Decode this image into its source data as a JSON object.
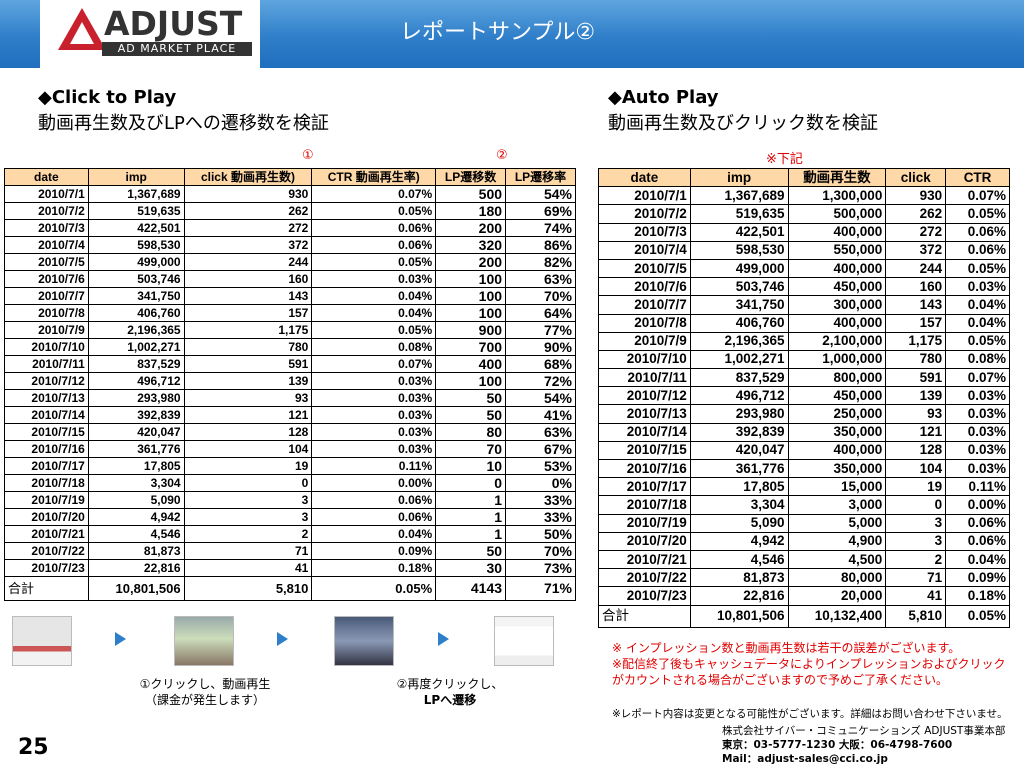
{
  "header": {
    "logo_text": "ADJUST",
    "logo_sub": "AD MARKET PLACE",
    "title": "レポートサンプル②"
  },
  "left": {
    "heading": "◆Click to Play",
    "subheading": "動画再生数及びLPへの遷移数を検証",
    "marker1": "①",
    "marker2": "②",
    "columns": [
      "date",
      "imp",
      "click 動画再生数)",
      "CTR 動画再生率)",
      "LP遷移数",
      "LP遷移率"
    ],
    "rows": [
      [
        "2010/7/1",
        "1,367,689",
        "930",
        "0.07%",
        "500",
        "54%"
      ],
      [
        "2010/7/2",
        "519,635",
        "262",
        "0.05%",
        "180",
        "69%"
      ],
      [
        "2010/7/3",
        "422,501",
        "272",
        "0.06%",
        "200",
        "74%"
      ],
      [
        "2010/7/4",
        "598,530",
        "372",
        "0.06%",
        "320",
        "86%"
      ],
      [
        "2010/7/5",
        "499,000",
        "244",
        "0.05%",
        "200",
        "82%"
      ],
      [
        "2010/7/6",
        "503,746",
        "160",
        "0.03%",
        "100",
        "63%"
      ],
      [
        "2010/7/7",
        "341,750",
        "143",
        "0.04%",
        "100",
        "70%"
      ],
      [
        "2010/7/8",
        "406,760",
        "157",
        "0.04%",
        "100",
        "64%"
      ],
      [
        "2010/7/9",
        "2,196,365",
        "1,175",
        "0.05%",
        "900",
        "77%"
      ],
      [
        "2010/7/10",
        "1,002,271",
        "780",
        "0.08%",
        "700",
        "90%"
      ],
      [
        "2010/7/11",
        "837,529",
        "591",
        "0.07%",
        "400",
        "68%"
      ],
      [
        "2010/7/12",
        "496,712",
        "139",
        "0.03%",
        "100",
        "72%"
      ],
      [
        "2010/7/13",
        "293,980",
        "93",
        "0.03%",
        "50",
        "54%"
      ],
      [
        "2010/7/14",
        "392,839",
        "121",
        "0.03%",
        "50",
        "41%"
      ],
      [
        "2010/7/15",
        "420,047",
        "128",
        "0.03%",
        "80",
        "63%"
      ],
      [
        "2010/7/16",
        "361,776",
        "104",
        "0.03%",
        "70",
        "67%"
      ],
      [
        "2010/7/17",
        "17,805",
        "19",
        "0.11%",
        "10",
        "53%"
      ],
      [
        "2010/7/18",
        "3,304",
        "0",
        "0.00%",
        "0",
        "0%"
      ],
      [
        "2010/7/19",
        "5,090",
        "3",
        "0.06%",
        "1",
        "33%"
      ],
      [
        "2010/7/20",
        "4,942",
        "3",
        "0.06%",
        "1",
        "33%"
      ],
      [
        "2010/7/21",
        "4,546",
        "2",
        "0.04%",
        "1",
        "50%"
      ],
      [
        "2010/7/22",
        "81,873",
        "71",
        "0.09%",
        "50",
        "70%"
      ],
      [
        "2010/7/23",
        "22,816",
        "41",
        "0.18%",
        "30",
        "73%"
      ]
    ],
    "total": [
      "合計",
      "10,801,506",
      "5,810",
      "0.05%",
      "4143",
      "71%"
    ]
  },
  "right": {
    "heading": "◆Auto Play",
    "subheading": "動画再生数及びクリック数を検証",
    "marker": "※下記",
    "columns": [
      "date",
      "imp",
      "動画再生数",
      "click",
      "CTR"
    ],
    "rows": [
      [
        "2010/7/1",
        "1,367,689",
        "1,300,000",
        "930",
        "0.07%"
      ],
      [
        "2010/7/2",
        "519,635",
        "500,000",
        "262",
        "0.05%"
      ],
      [
        "2010/7/3",
        "422,501",
        "400,000",
        "272",
        "0.06%"
      ],
      [
        "2010/7/4",
        "598,530",
        "550,000",
        "372",
        "0.06%"
      ],
      [
        "2010/7/5",
        "499,000",
        "400,000",
        "244",
        "0.05%"
      ],
      [
        "2010/7/6",
        "503,746",
        "450,000",
        "160",
        "0.03%"
      ],
      [
        "2010/7/7",
        "341,750",
        "300,000",
        "143",
        "0.04%"
      ],
      [
        "2010/7/8",
        "406,760",
        "400,000",
        "157",
        "0.04%"
      ],
      [
        "2010/7/9",
        "2,196,365",
        "2,100,000",
        "1,175",
        "0.05%"
      ],
      [
        "2010/7/10",
        "1,002,271",
        "1,000,000",
        "780",
        "0.08%"
      ],
      [
        "2010/7/11",
        "837,529",
        "800,000",
        "591",
        "0.07%"
      ],
      [
        "2010/7/12",
        "496,712",
        "450,000",
        "139",
        "0.03%"
      ],
      [
        "2010/7/13",
        "293,980",
        "250,000",
        "93",
        "0.03%"
      ],
      [
        "2010/7/14",
        "392,839",
        "350,000",
        "121",
        "0.03%"
      ],
      [
        "2010/7/15",
        "420,047",
        "400,000",
        "128",
        "0.03%"
      ],
      [
        "2010/7/16",
        "361,776",
        "350,000",
        "104",
        "0.03%"
      ],
      [
        "2010/7/17",
        "17,805",
        "15,000",
        "19",
        "0.11%"
      ],
      [
        "2010/7/18",
        "3,304",
        "3,000",
        "0",
        "0.00%"
      ],
      [
        "2010/7/19",
        "5,090",
        "5,000",
        "3",
        "0.06%"
      ],
      [
        "2010/7/20",
        "4,942",
        "4,900",
        "3",
        "0.06%"
      ],
      [
        "2010/7/21",
        "4,546",
        "4,500",
        "2",
        "0.04%"
      ],
      [
        "2010/7/22",
        "81,873",
        "80,000",
        "71",
        "0.09%"
      ],
      [
        "2010/7/23",
        "22,816",
        "20,000",
        "41",
        "0.18%"
      ]
    ],
    "total": [
      "合計",
      "10,801,506",
      "10,132,400",
      "5,810",
      "0.05%"
    ]
  },
  "flow": {
    "caption1_line1": "①クリックし、動画再生",
    "caption1_line2": "（課金が発生します）",
    "caption2_line1": "②再度クリックし、",
    "caption2_line2": "LPへ遷移"
  },
  "notes": {
    "red1": "※ インプレッション数と動画再生数は若干の誤差がございます。",
    "red2": "※配信終了後もキャッシュデータによりインプレッションおよびクリックがカウントされる場合がございますので予めご了承ください。",
    "black": "※レポート内容は変更となる可能性がございます。詳細はお問い合わせ下さいませ。"
  },
  "company": {
    "line1": "株式会社サイバー・コミュニケーションズ ADJUST事業本部",
    "line2": "東京：03-5777-1230 大阪：06-4798-7600",
    "line3": "Mail：adjust-sales@cci.co.jp"
  },
  "page_number": "25",
  "colors": {
    "header_blue": "#2f7ec9",
    "table_header": "#ffd8a8",
    "note_red": "#e00000",
    "logo_red": "#c8202c"
  }
}
